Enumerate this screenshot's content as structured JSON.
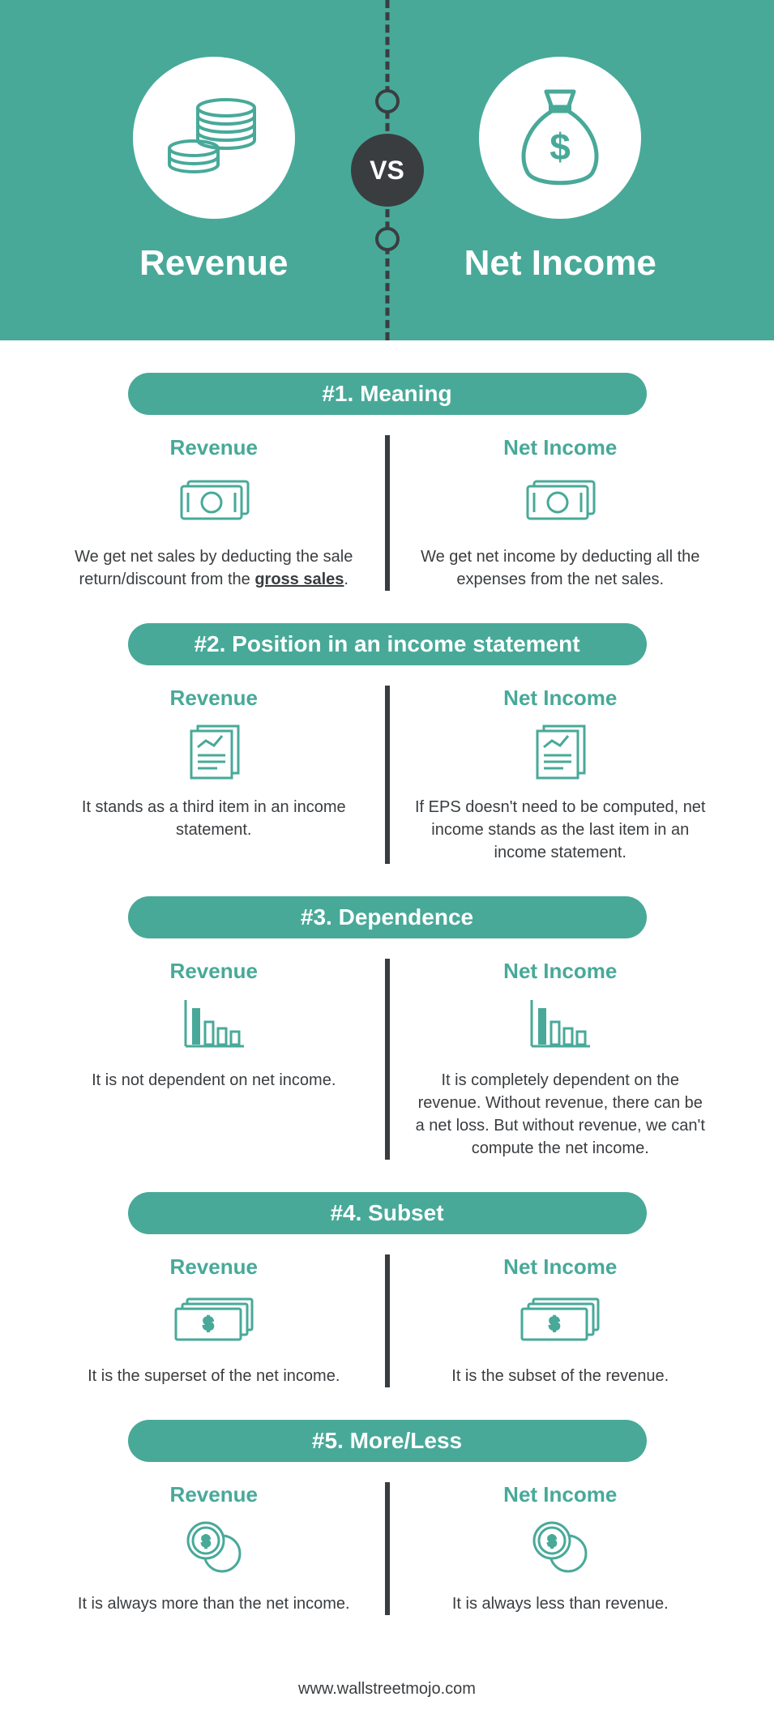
{
  "header": {
    "left_label": "Revenue",
    "right_label": "Net Income",
    "vs_label": "VS",
    "bg_color": "#48a999",
    "circle_color": "#ffffff",
    "text_color": "#ffffff",
    "divider_color": "#3a3d40"
  },
  "sections": [
    {
      "title": "#1. Meaning",
      "left_title": "Revenue",
      "left_text": "We get net sales by deducting the sale return/discount from the gross sales.",
      "right_title": "Net Income",
      "right_text": "We get net income by deducting all the expenses from the net sales.",
      "icon": "cash"
    },
    {
      "title": "#2. Position in an income statement",
      "left_title": "Revenue",
      "left_text": "It stands as a third item in an income statement.",
      "right_title": "Net Income",
      "right_text": "If EPS doesn't need to be computed, net income stands as the last item in an income statement.",
      "icon": "document"
    },
    {
      "title": "#3. Dependence",
      "left_title": "Revenue",
      "left_text": "It is not dependent on net income.",
      "right_title": "Net Income",
      "right_text": "It is completely dependent on the revenue. Without revenue, there can be a net loss. But without revenue, we can't compute the net income.",
      "icon": "chart"
    },
    {
      "title": "#4. Subset",
      "left_title": "Revenue",
      "left_text": "It is the superset of the net income.",
      "right_title": "Net Income",
      "right_text": "It is the subset of the revenue.",
      "icon": "bills"
    },
    {
      "title": "#5. More/Less",
      "left_title": "Revenue",
      "left_text": "It is always more than the net income.",
      "right_title": "Net Income",
      "right_text": "It is always less than revenue.",
      "icon": "coins-circle"
    }
  ],
  "footer": {
    "text": "www.wallstreetmojo.com"
  },
  "style": {
    "accent_color": "#48a999",
    "text_color": "#3a3d40",
    "pill_text_color": "#ffffff",
    "body_bg": "#ffffff"
  }
}
